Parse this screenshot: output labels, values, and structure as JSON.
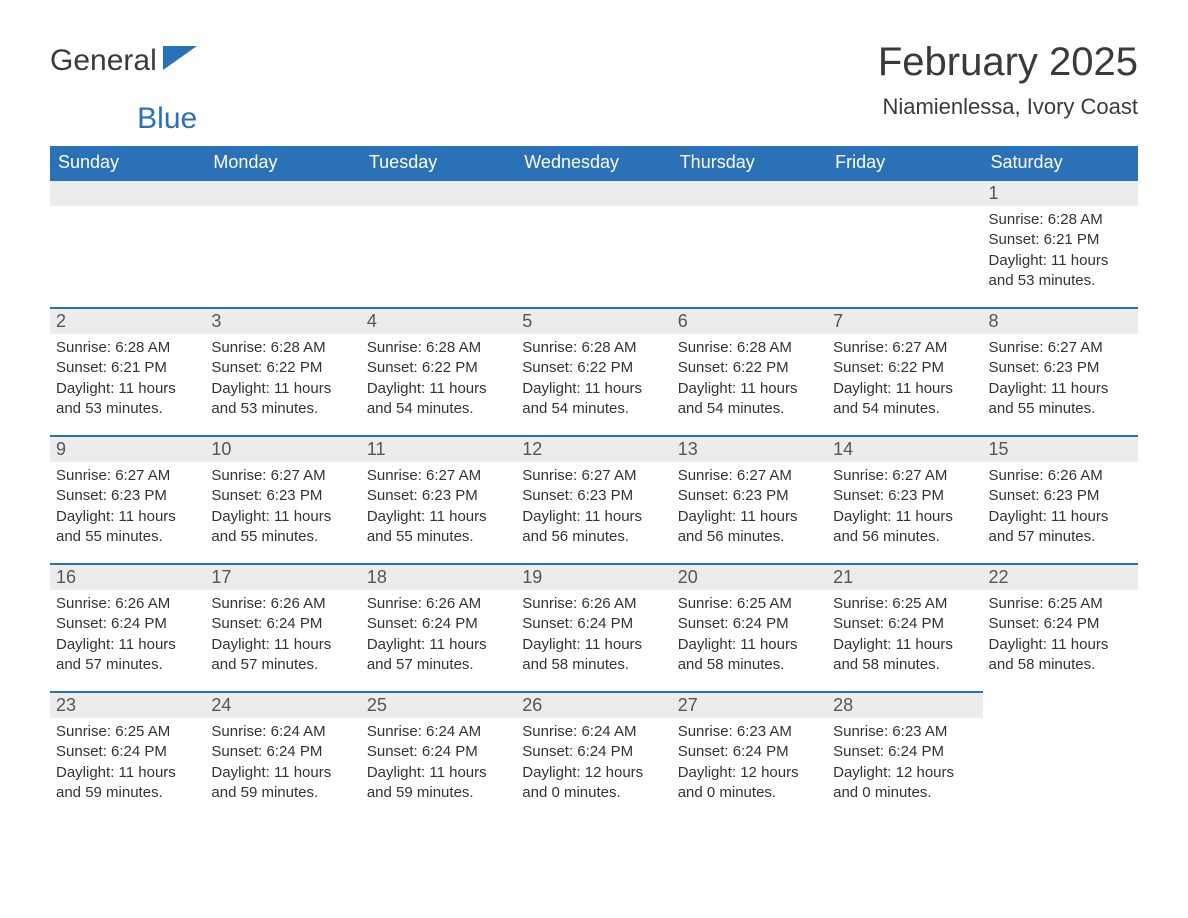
{
  "brand": {
    "word1": "General",
    "word2": "Blue"
  },
  "title": "February 2025",
  "location": "Niamienlessa, Ivory Coast",
  "colors": {
    "header_bg": "#2b71b8",
    "header_text": "#ffffff",
    "daynum_bg": "#ececec",
    "daynum_border": "#2b71b8",
    "body_text": "#333333",
    "title_text": "#3a3a3a",
    "page_bg": "#ffffff"
  },
  "typography": {
    "title_fontsize": 40,
    "location_fontsize": 22,
    "header_fontsize": 18,
    "daynum_fontsize": 18,
    "body_fontsize": 15
  },
  "weekdays": [
    "Sunday",
    "Monday",
    "Tuesday",
    "Wednesday",
    "Thursday",
    "Friday",
    "Saturday"
  ],
  "weeks": [
    [
      {
        "empty": true
      },
      {
        "empty": true
      },
      {
        "empty": true
      },
      {
        "empty": true
      },
      {
        "empty": true
      },
      {
        "empty": true
      },
      {
        "day": "1",
        "sunrise": "Sunrise: 6:28 AM",
        "sunset": "Sunset: 6:21 PM",
        "daylight": "Daylight: 11 hours and 53 minutes."
      }
    ],
    [
      {
        "day": "2",
        "sunrise": "Sunrise: 6:28 AM",
        "sunset": "Sunset: 6:21 PM",
        "daylight": "Daylight: 11 hours and 53 minutes."
      },
      {
        "day": "3",
        "sunrise": "Sunrise: 6:28 AM",
        "sunset": "Sunset: 6:22 PM",
        "daylight": "Daylight: 11 hours and 53 minutes."
      },
      {
        "day": "4",
        "sunrise": "Sunrise: 6:28 AM",
        "sunset": "Sunset: 6:22 PM",
        "daylight": "Daylight: 11 hours and 54 minutes."
      },
      {
        "day": "5",
        "sunrise": "Sunrise: 6:28 AM",
        "sunset": "Sunset: 6:22 PM",
        "daylight": "Daylight: 11 hours and 54 minutes."
      },
      {
        "day": "6",
        "sunrise": "Sunrise: 6:28 AM",
        "sunset": "Sunset: 6:22 PM",
        "daylight": "Daylight: 11 hours and 54 minutes."
      },
      {
        "day": "7",
        "sunrise": "Sunrise: 6:27 AM",
        "sunset": "Sunset: 6:22 PM",
        "daylight": "Daylight: 11 hours and 54 minutes."
      },
      {
        "day": "8",
        "sunrise": "Sunrise: 6:27 AM",
        "sunset": "Sunset: 6:23 PM",
        "daylight": "Daylight: 11 hours and 55 minutes."
      }
    ],
    [
      {
        "day": "9",
        "sunrise": "Sunrise: 6:27 AM",
        "sunset": "Sunset: 6:23 PM",
        "daylight": "Daylight: 11 hours and 55 minutes."
      },
      {
        "day": "10",
        "sunrise": "Sunrise: 6:27 AM",
        "sunset": "Sunset: 6:23 PM",
        "daylight": "Daylight: 11 hours and 55 minutes."
      },
      {
        "day": "11",
        "sunrise": "Sunrise: 6:27 AM",
        "sunset": "Sunset: 6:23 PM",
        "daylight": "Daylight: 11 hours and 55 minutes."
      },
      {
        "day": "12",
        "sunrise": "Sunrise: 6:27 AM",
        "sunset": "Sunset: 6:23 PM",
        "daylight": "Daylight: 11 hours and 56 minutes."
      },
      {
        "day": "13",
        "sunrise": "Sunrise: 6:27 AM",
        "sunset": "Sunset: 6:23 PM",
        "daylight": "Daylight: 11 hours and 56 minutes."
      },
      {
        "day": "14",
        "sunrise": "Sunrise: 6:27 AM",
        "sunset": "Sunset: 6:23 PM",
        "daylight": "Daylight: 11 hours and 56 minutes."
      },
      {
        "day": "15",
        "sunrise": "Sunrise: 6:26 AM",
        "sunset": "Sunset: 6:23 PM",
        "daylight": "Daylight: 11 hours and 57 minutes."
      }
    ],
    [
      {
        "day": "16",
        "sunrise": "Sunrise: 6:26 AM",
        "sunset": "Sunset: 6:24 PM",
        "daylight": "Daylight: 11 hours and 57 minutes."
      },
      {
        "day": "17",
        "sunrise": "Sunrise: 6:26 AM",
        "sunset": "Sunset: 6:24 PM",
        "daylight": "Daylight: 11 hours and 57 minutes."
      },
      {
        "day": "18",
        "sunrise": "Sunrise: 6:26 AM",
        "sunset": "Sunset: 6:24 PM",
        "daylight": "Daylight: 11 hours and 57 minutes."
      },
      {
        "day": "19",
        "sunrise": "Sunrise: 6:26 AM",
        "sunset": "Sunset: 6:24 PM",
        "daylight": "Daylight: 11 hours and 58 minutes."
      },
      {
        "day": "20",
        "sunrise": "Sunrise: 6:25 AM",
        "sunset": "Sunset: 6:24 PM",
        "daylight": "Daylight: 11 hours and 58 minutes."
      },
      {
        "day": "21",
        "sunrise": "Sunrise: 6:25 AM",
        "sunset": "Sunset: 6:24 PM",
        "daylight": "Daylight: 11 hours and 58 minutes."
      },
      {
        "day": "22",
        "sunrise": "Sunrise: 6:25 AM",
        "sunset": "Sunset: 6:24 PM",
        "daylight": "Daylight: 11 hours and 58 minutes."
      }
    ],
    [
      {
        "day": "23",
        "sunrise": "Sunrise: 6:25 AM",
        "sunset": "Sunset: 6:24 PM",
        "daylight": "Daylight: 11 hours and 59 minutes."
      },
      {
        "day": "24",
        "sunrise": "Sunrise: 6:24 AM",
        "sunset": "Sunset: 6:24 PM",
        "daylight": "Daylight: 11 hours and 59 minutes."
      },
      {
        "day": "25",
        "sunrise": "Sunrise: 6:24 AM",
        "sunset": "Sunset: 6:24 PM",
        "daylight": "Daylight: 11 hours and 59 minutes."
      },
      {
        "day": "26",
        "sunrise": "Sunrise: 6:24 AM",
        "sunset": "Sunset: 6:24 PM",
        "daylight": "Daylight: 12 hours and 0 minutes."
      },
      {
        "day": "27",
        "sunrise": "Sunrise: 6:23 AM",
        "sunset": "Sunset: 6:24 PM",
        "daylight": "Daylight: 12 hours and 0 minutes."
      },
      {
        "day": "28",
        "sunrise": "Sunrise: 6:23 AM",
        "sunset": "Sunset: 6:24 PM",
        "daylight": "Daylight: 12 hours and 0 minutes."
      },
      {
        "empty": true,
        "noBar": true
      }
    ]
  ]
}
